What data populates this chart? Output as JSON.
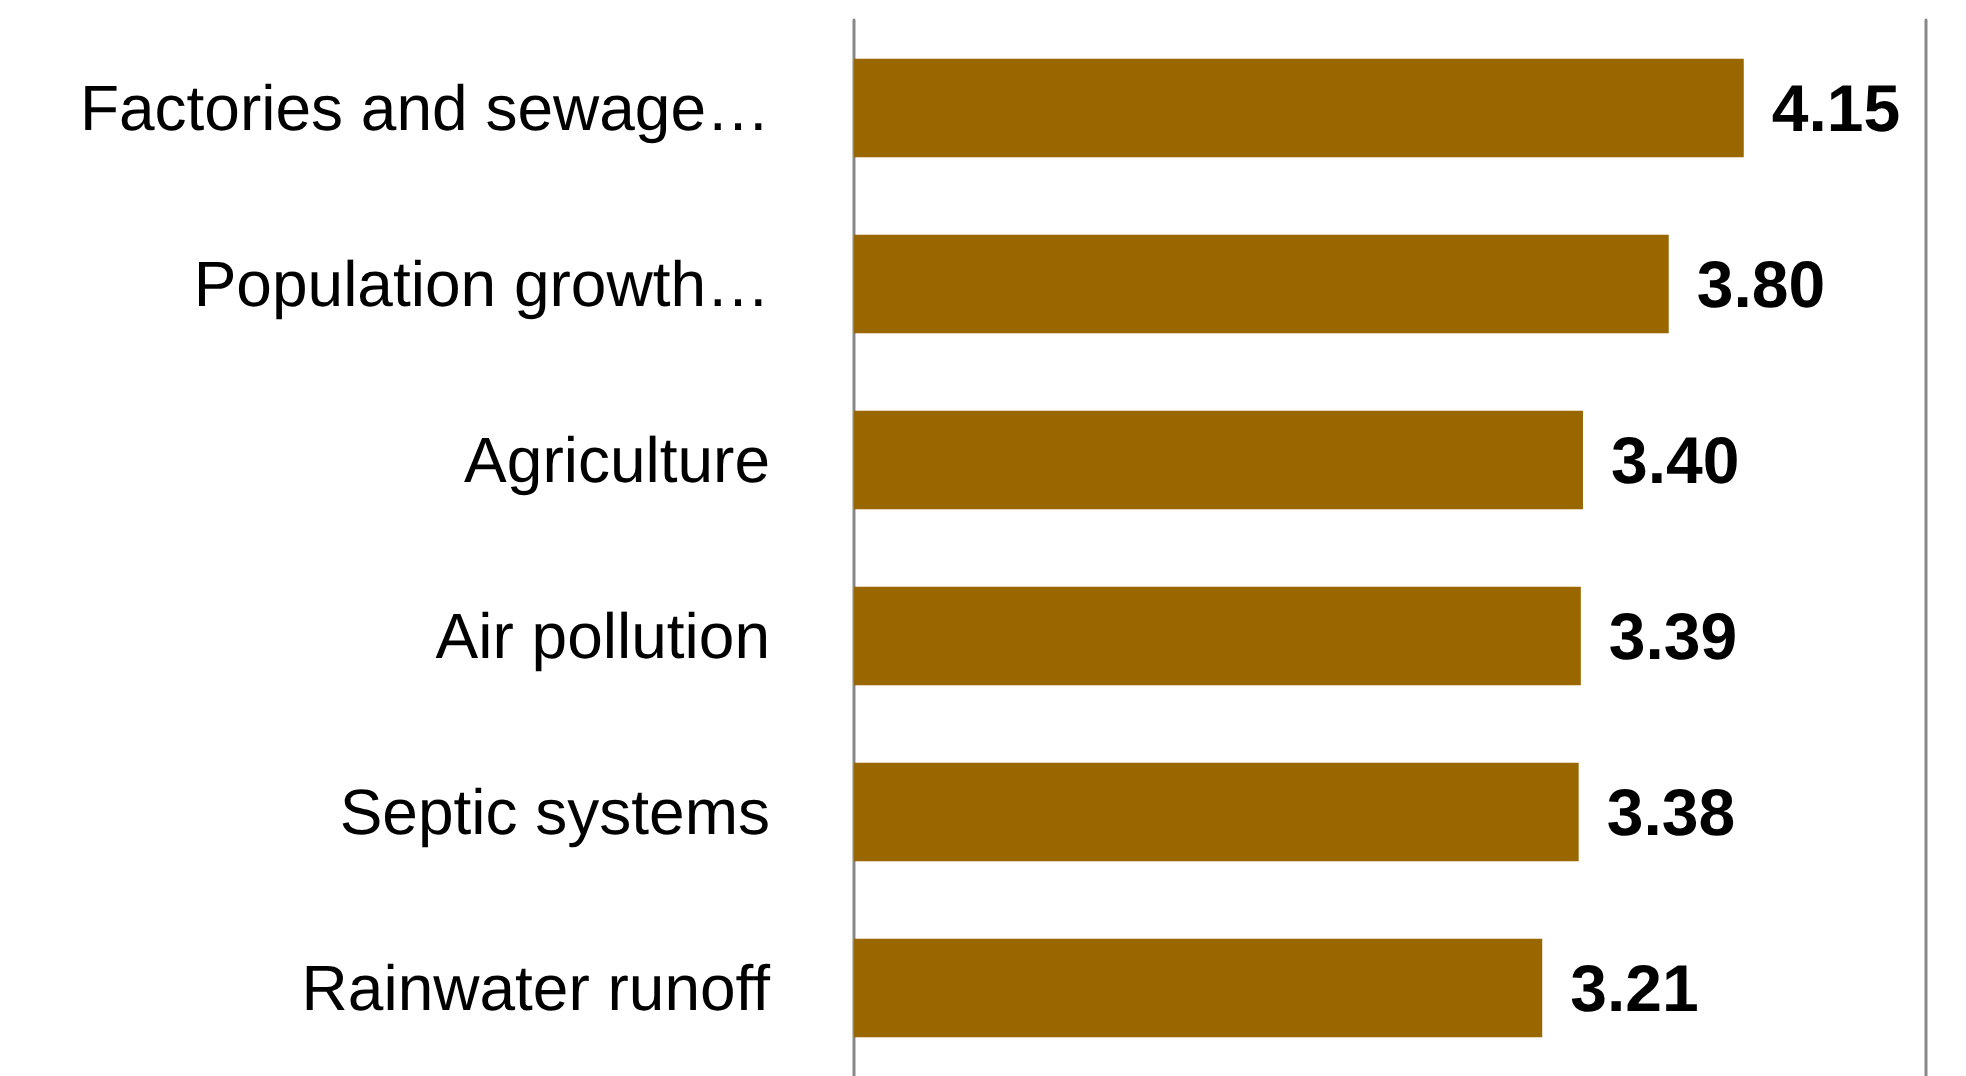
{
  "chart_data": {
    "type": "bar",
    "orientation": "horizontal",
    "categories": [
      "Factories and sewage…",
      "Population growth…",
      "Agriculture",
      "Air pollution",
      "Septic systems",
      "Rainwater runoff"
    ],
    "values": [
      4.15,
      3.8,
      3.4,
      3.39,
      3.38,
      3.21
    ],
    "value_labels": [
      "4.15",
      "3.80",
      "3.40",
      "3.39",
      "3.38",
      "3.21"
    ],
    "color": "#996600",
    "xlim": [
      0,
      5
    ],
    "tick_labels": "y"
  }
}
